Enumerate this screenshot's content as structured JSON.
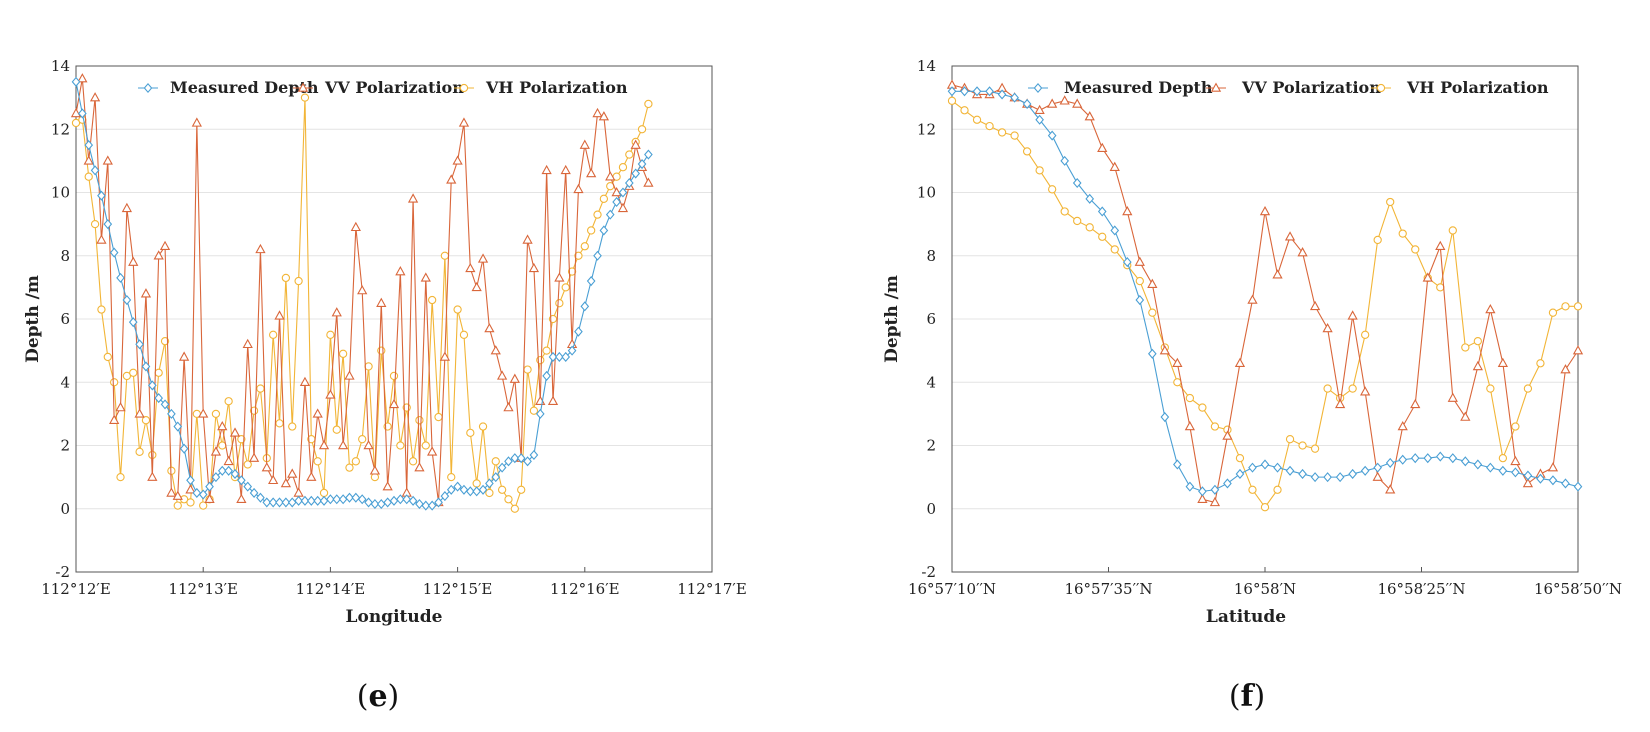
{
  "colors": {
    "measured": "#4A9FD4",
    "vv": "#D9663A",
    "vh": "#F2B537",
    "grid": "#e4e4e4",
    "axis": "#555555"
  },
  "chart_data": [
    {
      "type": "line",
      "panel": "e",
      "caption_open": "(",
      "caption_letter": "e",
      "caption_close": ")",
      "xlabel": "Longitude",
      "ylabel": "Depth /m",
      "xlim": [
        0,
        5
      ],
      "ylim": [
        -2,
        14
      ],
      "yticks": [
        -2,
        0,
        2,
        4,
        6,
        8,
        10,
        12,
        14
      ],
      "ytick_labels": [
        "-2",
        "0",
        "2",
        "4",
        "6",
        "8",
        "10",
        "12",
        "14"
      ],
      "xticks": [
        0,
        1,
        2,
        3,
        4,
        5
      ],
      "xtick_labels": [
        "112°12′E",
        "112°13′E",
        "112°14′E",
        "112°15′E",
        "112°16′E",
        "112°17′E"
      ],
      "legend_position": "top",
      "series": [
        {
          "name": "Measured Depth",
          "key": "measured",
          "marker": "diamond",
          "x": [
            0.0,
            0.05,
            0.1,
            0.15,
            0.2,
            0.25,
            0.3,
            0.35,
            0.4,
            0.45,
            0.5,
            0.55,
            0.6,
            0.65,
            0.7,
            0.75,
            0.8,
            0.85,
            0.9,
            0.95,
            1.0,
            1.05,
            1.1,
            1.15,
            1.2,
            1.25,
            1.3,
            1.35,
            1.4,
            1.45,
            1.5,
            1.55,
            1.6,
            1.65,
            1.7,
            1.75,
            1.8,
            1.85,
            1.9,
            1.95,
            2.0,
            2.05,
            2.1,
            2.15,
            2.2,
            2.25,
            2.3,
            2.35,
            2.4,
            2.45,
            2.5,
            2.55,
            2.6,
            2.65,
            2.7,
            2.75,
            2.8,
            2.85,
            2.9,
            2.95,
            3.0,
            3.05,
            3.1,
            3.15,
            3.2,
            3.25,
            3.3,
            3.35,
            3.4,
            3.45,
            3.5,
            3.55,
            3.6,
            3.65,
            3.7,
            3.75,
            3.8,
            3.85,
            3.9,
            3.95,
            4.0,
            4.05,
            4.1,
            4.15,
            4.2,
            4.25,
            4.3,
            4.35,
            4.4,
            4.45,
            4.5
          ],
          "values": [
            13.5,
            12.5,
            11.5,
            10.7,
            9.9,
            9.0,
            8.1,
            7.3,
            6.6,
            5.9,
            5.2,
            4.5,
            3.9,
            3.5,
            3.3,
            3.0,
            2.6,
            1.9,
            0.9,
            0.5,
            0.45,
            0.7,
            1.0,
            1.2,
            1.2,
            1.1,
            0.9,
            0.7,
            0.5,
            0.35,
            0.2,
            0.2,
            0.2,
            0.2,
            0.2,
            0.25,
            0.25,
            0.25,
            0.25,
            0.25,
            0.3,
            0.3,
            0.3,
            0.35,
            0.35,
            0.3,
            0.2,
            0.15,
            0.15,
            0.2,
            0.25,
            0.3,
            0.3,
            0.25,
            0.15,
            0.1,
            0.1,
            0.2,
            0.4,
            0.6,
            0.7,
            0.6,
            0.55,
            0.55,
            0.6,
            0.8,
            1.0,
            1.3,
            1.5,
            1.6,
            1.6,
            1.5,
            1.7,
            3.0,
            4.2,
            4.8,
            4.8,
            4.8,
            5.0,
            5.6,
            6.4,
            7.2,
            8.0,
            8.8,
            9.3,
            9.7,
            10.0,
            10.3,
            10.6,
            10.9,
            11.2
          ]
        },
        {
          "name": "VV Polarization",
          "key": "vv",
          "marker": "triangle",
          "x": [
            0.0,
            0.05,
            0.1,
            0.15,
            0.2,
            0.25,
            0.3,
            0.35,
            0.4,
            0.45,
            0.5,
            0.55,
            0.6,
            0.65,
            0.7,
            0.75,
            0.8,
            0.85,
            0.9,
            0.95,
            1.0,
            1.05,
            1.1,
            1.15,
            1.2,
            1.25,
            1.3,
            1.35,
            1.4,
            1.45,
            1.5,
            1.55,
            1.6,
            1.65,
            1.7,
            1.75,
            1.8,
            1.85,
            1.9,
            1.95,
            2.0,
            2.05,
            2.1,
            2.15,
            2.2,
            2.25,
            2.3,
            2.35,
            2.4,
            2.45,
            2.5,
            2.55,
            2.6,
            2.65,
            2.7,
            2.75,
            2.8,
            2.85,
            2.9,
            2.95,
            3.0,
            3.05,
            3.1,
            3.15,
            3.2,
            3.25,
            3.3,
            3.35,
            3.4,
            3.45,
            3.5,
            3.55,
            3.6,
            3.65,
            3.7,
            3.75,
            3.8,
            3.85,
            3.9,
            3.95,
            4.0,
            4.05,
            4.1,
            4.15,
            4.2,
            4.25,
            4.3,
            4.35,
            4.4,
            4.45,
            4.5
          ],
          "values": [
            12.5,
            13.6,
            11.0,
            13.0,
            8.5,
            11.0,
            2.8,
            3.2,
            9.5,
            7.8,
            3.0,
            6.8,
            1.0,
            8.0,
            8.3,
            0.5,
            0.4,
            4.8,
            0.6,
            12.2,
            3.0,
            0.3,
            1.8,
            2.6,
            1.5,
            2.4,
            0.3,
            5.2,
            1.6,
            8.2,
            1.3,
            0.9,
            6.1,
            0.8,
            1.1,
            0.5,
            4.0,
            1.0,
            3.0,
            2.0,
            3.6,
            6.2,
            2.0,
            4.2,
            8.9,
            6.9,
            2.0,
            1.2,
            6.5,
            0.7,
            3.3,
            7.5,
            0.5,
            9.8,
            1.3,
            7.3,
            1.8,
            0.2,
            4.8,
            10.4,
            11.0,
            12.2,
            7.6,
            7.0,
            7.9,
            5.7,
            5.0,
            4.2,
            3.2,
            4.1,
            1.6,
            8.5,
            7.6,
            3.4,
            10.7,
            3.4,
            7.3,
            10.7,
            5.2,
            10.1,
            11.5,
            10.6,
            12.5,
            12.4,
            10.5,
            10.0,
            9.5,
            10.2,
            11.5,
            10.8,
            10.3
          ]
        },
        {
          "name": "VH Polarization",
          "key": "vh",
          "marker": "circle",
          "x": [
            0.0,
            0.05,
            0.1,
            0.15,
            0.2,
            0.25,
            0.3,
            0.35,
            0.4,
            0.45,
            0.5,
            0.55,
            0.6,
            0.65,
            0.7,
            0.75,
            0.8,
            0.85,
            0.9,
            0.95,
            1.0,
            1.05,
            1.1,
            1.15,
            1.2,
            1.25,
            1.3,
            1.35,
            1.4,
            1.45,
            1.5,
            1.55,
            1.6,
            1.65,
            1.7,
            1.75,
            1.8,
            1.85,
            1.9,
            1.95,
            2.0,
            2.05,
            2.1,
            2.15,
            2.2,
            2.25,
            2.3,
            2.35,
            2.4,
            2.45,
            2.5,
            2.55,
            2.6,
            2.65,
            2.7,
            2.75,
            2.8,
            2.85,
            2.9,
            2.95,
            3.0,
            3.05,
            3.1,
            3.15,
            3.2,
            3.25,
            3.3,
            3.35,
            3.4,
            3.45,
            3.5,
            3.55,
            3.6,
            3.65,
            3.7,
            3.75,
            3.8,
            3.85,
            3.9,
            3.95,
            4.0,
            4.05,
            4.1,
            4.15,
            4.2,
            4.25,
            4.3,
            4.35,
            4.4,
            4.45,
            4.5
          ],
          "values": [
            12.2,
            12.3,
            10.5,
            9.0,
            6.3,
            4.8,
            4.0,
            1.0,
            4.2,
            4.3,
            1.8,
            2.8,
            1.7,
            4.3,
            5.3,
            1.2,
            0.1,
            0.3,
            0.2,
            3.0,
            0.1,
            0.3,
            3.0,
            2.0,
            3.4,
            1.0,
            2.2,
            1.4,
            3.1,
            3.8,
            1.6,
            5.5,
            2.7,
            7.3,
            2.6,
            7.2,
            13.0,
            2.2,
            1.5,
            0.5,
            5.5,
            2.5,
            4.9,
            1.3,
            1.5,
            2.2,
            4.5,
            1.0,
            5.0,
            2.6,
            4.2,
            2.0,
            3.2,
            1.5,
            2.8,
            2.0,
            6.6,
            2.9,
            8.0,
            1.0,
            6.3,
            5.5,
            2.4,
            0.8,
            2.6,
            0.5,
            1.5,
            0.6,
            0.3,
            0.0,
            0.6,
            4.4,
            3.1,
            4.7,
            5.0,
            6.0,
            6.5,
            7.0,
            7.5,
            8.0,
            8.3,
            8.8,
            9.3,
            9.8,
            10.2,
            10.5,
            10.8,
            11.2,
            11.6,
            12.0,
            12.8
          ]
        }
      ]
    },
    {
      "type": "line",
      "panel": "f",
      "caption_open": "(",
      "caption_letter": "f",
      "caption_close": ")",
      "xlabel": "Latitude",
      "ylabel": "Depth /m",
      "xlim": [
        0,
        100
      ],
      "ylim": [
        -2,
        14
      ],
      "yticks": [
        -2,
        0,
        2,
        4,
        6,
        8,
        10,
        12,
        14
      ],
      "ytick_labels": [
        "-2",
        "0",
        "2",
        "4",
        "6",
        "8",
        "10",
        "12",
        "14"
      ],
      "xticks": [
        0,
        25,
        50,
        75,
        100
      ],
      "xtick_labels": [
        "16°57′10′′N",
        "16°57′35′′N",
        "16°58′N",
        "16°58′25′′N",
        "16°58′50′′N"
      ],
      "legend_position": "top",
      "series": [
        {
          "name": "Measured Depth",
          "key": "measured",
          "marker": "diamond",
          "x": [
            0,
            2,
            4,
            6,
            8,
            10,
            12,
            14,
            16,
            18,
            20,
            22,
            24,
            26,
            28,
            30,
            32,
            34,
            36,
            38,
            40,
            42,
            44,
            46,
            48,
            50,
            52,
            54,
            56,
            58,
            60,
            62,
            64,
            66,
            68,
            70,
            72,
            74,
            76,
            78,
            80,
            82,
            84,
            86,
            88,
            90,
            92,
            94,
            96,
            98,
            100
          ],
          "values": [
            13.2,
            13.2,
            13.2,
            13.2,
            13.1,
            13.0,
            12.8,
            12.3,
            11.8,
            11.0,
            10.3,
            9.8,
            9.4,
            8.8,
            7.8,
            6.6,
            4.9,
            2.9,
            1.4,
            0.7,
            0.55,
            0.6,
            0.8,
            1.1,
            1.3,
            1.4,
            1.3,
            1.2,
            1.1,
            1.0,
            1.0,
            1.0,
            1.1,
            1.2,
            1.3,
            1.45,
            1.55,
            1.6,
            1.6,
            1.65,
            1.6,
            1.5,
            1.4,
            1.3,
            1.2,
            1.15,
            1.05,
            0.95,
            0.9,
            0.8,
            0.7
          ]
        },
        {
          "name": "VV Polarization",
          "key": "vv",
          "marker": "triangle",
          "x": [
            0,
            2,
            4,
            6,
            8,
            10,
            12,
            14,
            16,
            18,
            20,
            22,
            24,
            26,
            28,
            30,
            32,
            34,
            36,
            38,
            40,
            42,
            44,
            46,
            48,
            50,
            52,
            54,
            56,
            58,
            60,
            62,
            64,
            66,
            68,
            70,
            72,
            74,
            76,
            78,
            80,
            82,
            84,
            86,
            88,
            90,
            92,
            94,
            96,
            98,
            100
          ],
          "values": [
            13.4,
            13.3,
            13.1,
            13.1,
            13.3,
            13.0,
            12.8,
            12.6,
            12.8,
            12.9,
            12.8,
            12.4,
            11.4,
            10.8,
            9.4,
            7.8,
            7.1,
            5.0,
            4.6,
            2.6,
            0.3,
            0.2,
            2.3,
            4.6,
            6.6,
            9.4,
            7.4,
            8.6,
            8.1,
            6.4,
            5.7,
            3.3,
            6.1,
            3.7,
            1.0,
            0.6,
            2.6,
            3.3,
            7.3,
            8.3,
            3.5,
            2.9,
            4.5,
            6.3,
            4.6,
            1.5,
            0.8,
            1.1,
            1.3,
            4.4,
            5.0
          ]
        },
        {
          "name": "VH Polarization",
          "key": "vh",
          "marker": "circle",
          "x": [
            0,
            2,
            4,
            6,
            8,
            10,
            12,
            14,
            16,
            18,
            20,
            22,
            24,
            26,
            28,
            30,
            32,
            34,
            36,
            38,
            40,
            42,
            44,
            46,
            48,
            50,
            52,
            54,
            56,
            58,
            60,
            62,
            64,
            66,
            68,
            70,
            72,
            74,
            76,
            78,
            80,
            82,
            84,
            86,
            88,
            90,
            92,
            94,
            96,
            98,
            100
          ],
          "values": [
            12.9,
            12.6,
            12.3,
            12.1,
            11.9,
            11.8,
            11.3,
            10.7,
            10.1,
            9.4,
            9.1,
            8.9,
            8.6,
            8.2,
            7.7,
            7.2,
            6.2,
            5.1,
            4.0,
            3.5,
            3.2,
            2.6,
            2.5,
            1.6,
            0.6,
            0.05,
            0.6,
            2.2,
            2.0,
            1.9,
            3.8,
            3.5,
            3.8,
            5.5,
            8.5,
            9.7,
            8.7,
            8.2,
            7.3,
            7.0,
            8.8,
            5.1,
            5.3,
            3.8,
            1.6,
            2.6,
            3.8,
            4.6,
            6.2,
            6.4,
            6.4
          ]
        }
      ]
    }
  ]
}
